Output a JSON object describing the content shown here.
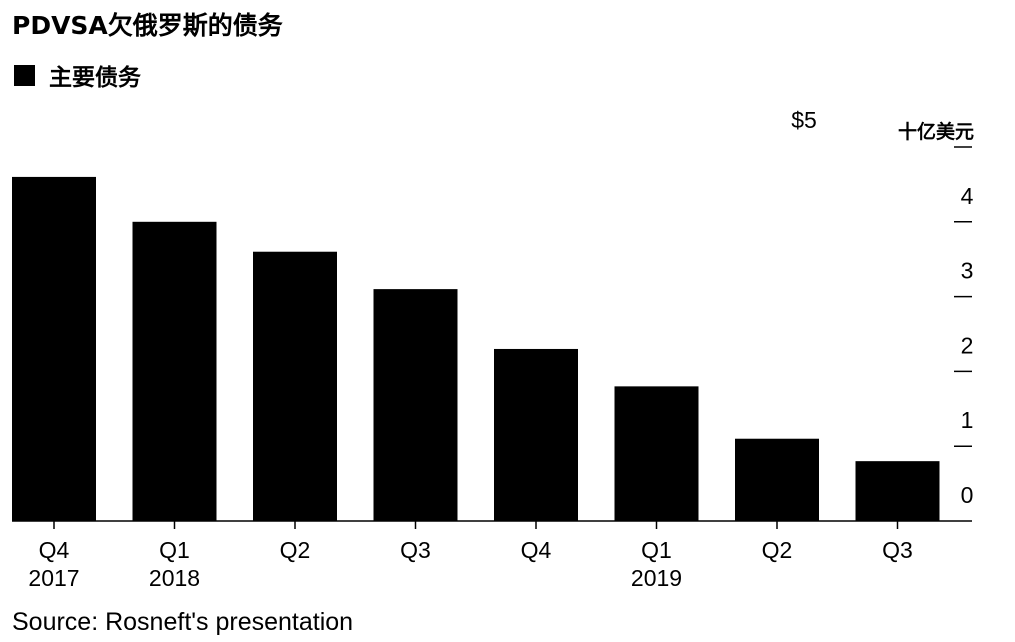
{
  "title": "PDVSA欠俄罗斯的债务",
  "legend": {
    "label": "主要债务",
    "color": "#000000"
  },
  "unit_label": "十亿美元",
  "source": "Source: Rosneft's presentation",
  "chart_data": {
    "type": "bar",
    "title": "PDVSA欠俄罗斯的债务",
    "categories": [
      "Q4 2017",
      "Q1 2018",
      "Q2",
      "Q3",
      "Q4",
      "Q1 2019",
      "Q2",
      "Q3"
    ],
    "x_tick_labels": [
      [
        "Q4",
        "2017"
      ],
      [
        "Q1",
        "2018"
      ],
      [
        "Q2",
        ""
      ],
      [
        "Q3",
        ""
      ],
      [
        "Q4",
        ""
      ],
      [
        "Q1",
        "2019"
      ],
      [
        "Q2",
        ""
      ],
      [
        "Q3",
        ""
      ]
    ],
    "series": [
      {
        "name": "主要债务",
        "values": [
          4.6,
          4.0,
          3.6,
          3.1,
          2.3,
          1.8,
          1.1,
          0.8
        ],
        "color": "#000000"
      }
    ],
    "ylim": [
      0,
      5
    ],
    "y_ticks": [
      0,
      1,
      2,
      3,
      4,
      5
    ],
    "y_tick_labels": [
      "0",
      "1",
      "2",
      "3",
      "4",
      "$5"
    ],
    "y_axis_side": "right",
    "ylabel": "十亿美元",
    "grid": false,
    "legend_position": "top-left"
  }
}
